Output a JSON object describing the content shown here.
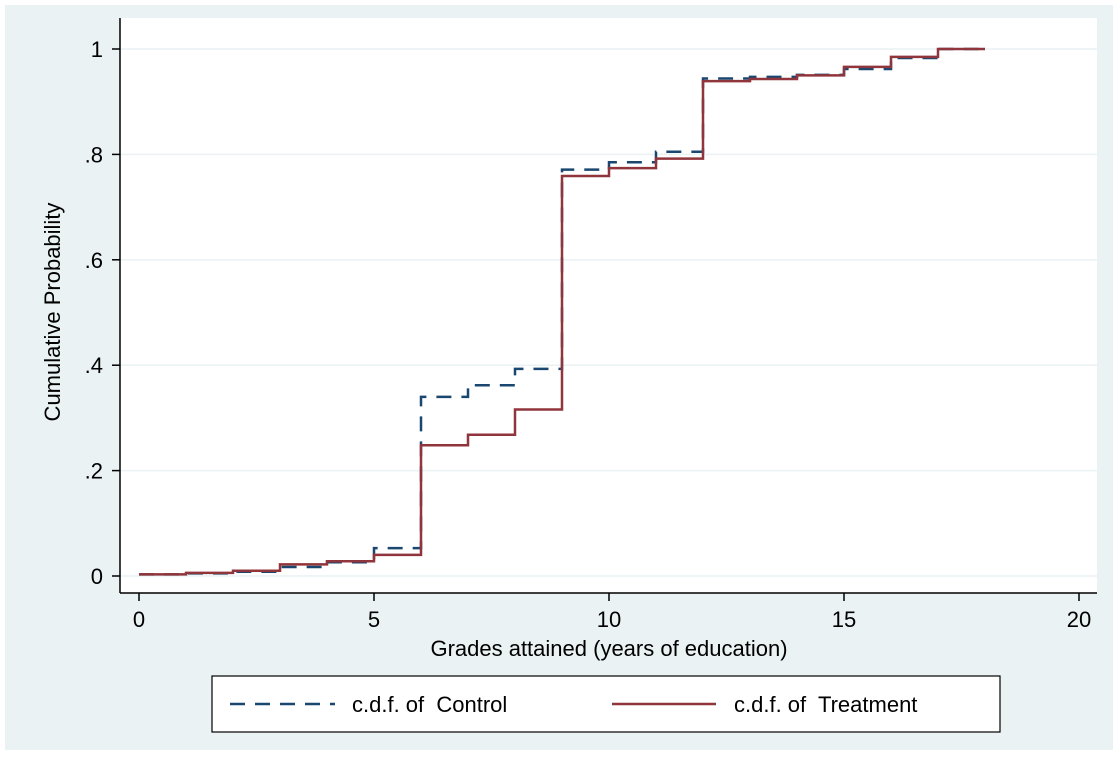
{
  "chart_data": {
    "type": "line",
    "step": "post",
    "xlabel": "Grades attained (years of education)",
    "ylabel": "Cumulative Probability",
    "xlim": [
      0,
      20
    ],
    "ylim": [
      0,
      1
    ],
    "x_ticks": [
      0,
      5,
      10,
      15,
      20
    ],
    "x_tick_labels": [
      "0",
      "5",
      "10",
      "15",
      "20"
    ],
    "y_ticks": [
      0,
      0.2,
      0.4,
      0.6,
      0.8,
      1
    ],
    "y_tick_labels": [
      "0",
      ".2",
      ".4",
      ".6",
      ".8",
      "1"
    ],
    "grid": true,
    "legend_position": "bottom",
    "series": [
      {
        "name": "c.d.f. of  Control",
        "color": "#1a476f",
        "dash": "dashed",
        "x": [
          0,
          1,
          2,
          3,
          4,
          5,
          6,
          7,
          8,
          9,
          10,
          11,
          12,
          13,
          14,
          15,
          16,
          17,
          18
        ],
        "y": [
          0.003,
          0.005,
          0.008,
          0.017,
          0.026,
          0.053,
          0.34,
          0.362,
          0.393,
          0.771,
          0.785,
          0.805,
          0.944,
          0.947,
          0.951,
          0.962,
          0.983,
          1.0,
          1.0
        ]
      },
      {
        "name": "c.d.f. of  Treatment",
        "color": "#90353b",
        "dash": "solid",
        "x": [
          0,
          1,
          2,
          3,
          4,
          5,
          6,
          7,
          8,
          9,
          10,
          11,
          12,
          13,
          14,
          15,
          16,
          17,
          18
        ],
        "y": [
          0.003,
          0.006,
          0.01,
          0.022,
          0.028,
          0.04,
          0.248,
          0.268,
          0.316,
          0.759,
          0.774,
          0.792,
          0.939,
          0.943,
          0.95,
          0.966,
          0.985,
          1.0,
          1.0
        ]
      }
    ]
  }
}
